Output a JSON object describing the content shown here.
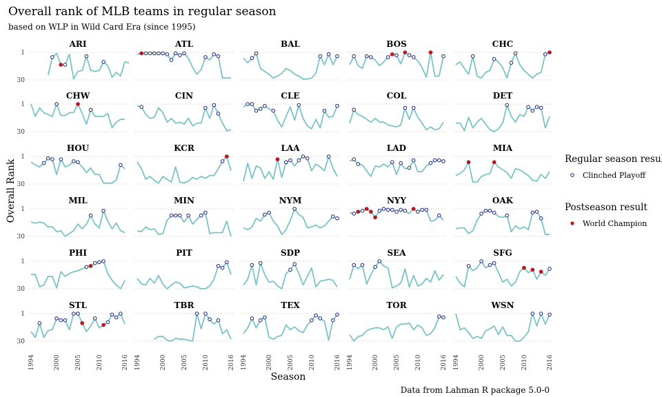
{
  "chart_data": {
    "type": "line",
    "title": "Overall rank of MLB teams in regular season",
    "subtitle": "based on WLP in Wild Card Era (since 1995)",
    "xlabel": "Season",
    "ylabel": "Overall Rank",
    "caption": "Data from Lahman R package 5.0-0",
    "x_ticks": [
      1994,
      2000,
      2005,
      2010,
      2016
    ],
    "y_ticks": [
      1,
      30
    ],
    "xlim": [
      1994,
      2016
    ],
    "ylim": [
      1,
      30
    ],
    "y_reversed": true,
    "grid": true,
    "legend_position": "right",
    "colors": {
      "line": "#79c3c8",
      "playoff_stroke": "#1a237e",
      "champion": "#cc1111",
      "grid": "#d0d0d0"
    },
    "legend": {
      "regular_title": "Regular season result",
      "regular_label": "Clinched Playoff",
      "post_title": "Postseason result",
      "post_label": "World Champion"
    },
    "panels": [
      {
        "name": "ARI",
        "start_year": 1998,
        "ranks": [
          25,
          6,
          2,
          14,
          14,
          3,
          29,
          21,
          20,
          5,
          20,
          21,
          20,
          11,
          15,
          27,
          22,
          26,
          11,
          12
        ],
        "playoffs": [
          1999,
          2001,
          2002,
          2007,
          2011
        ],
        "champions": [
          2001
        ]
      },
      {
        "name": "ATL",
        "start_year": 1994,
        "ranks": [
          3,
          2,
          2,
          2,
          2,
          2,
          2,
          3,
          9,
          2,
          4,
          2,
          7,
          17,
          24,
          19,
          6,
          9,
          3,
          5,
          28,
          28,
          28
        ],
        "playoffs": [
          1995,
          1996,
          1997,
          1998,
          1999,
          2000,
          2001,
          2002,
          2003,
          2004,
          2005,
          2010,
          2012,
          2013
        ],
        "champions": [
          1995
        ]
      },
      {
        "name": "BAL",
        "start_year": 1994,
        "ranks": [
          7,
          12,
          7,
          2,
          18,
          21,
          24,
          28,
          26,
          23,
          18,
          20,
          24,
          26,
          29,
          29,
          28,
          23,
          5,
          14,
          3,
          14,
          5
        ],
        "playoffs": [
          1996,
          1997,
          2012,
          2014,
          2016
        ],
        "champions": []
      },
      {
        "name": "BOS",
        "start_year": 1994,
        "ranks": [
          14,
          5,
          15,
          18,
          5,
          6,
          9,
          15,
          11,
          6,
          3,
          4,
          13,
          1,
          4,
          6,
          10,
          17,
          27,
          1,
          26,
          26,
          5
        ],
        "playoffs": [
          1995,
          1998,
          1999,
          2003,
          2004,
          2005,
          2007,
          2008,
          2009,
          2013,
          2016
        ],
        "champions": [
          2004,
          2007,
          2013
        ]
      },
      {
        "name": "CHC",
        "start_year": 1994,
        "ranks": [
          14,
          11,
          18,
          24,
          5,
          26,
          28,
          22,
          20,
          8,
          11,
          17,
          28,
          12,
          2,
          14,
          20,
          24,
          28,
          24,
          22,
          3,
          1
        ],
        "playoffs": [
          1998,
          2003,
          2007,
          2008,
          2015,
          2016
        ],
        "champions": [
          2016
        ]
      },
      {
        "name": "CHW",
        "start_year": 1994,
        "ranks": [
          1,
          14,
          5,
          10,
          12,
          14,
          1,
          13,
          13,
          10,
          10,
          1,
          11,
          22,
          7,
          14,
          14,
          14,
          11,
          26,
          20,
          17,
          17
        ],
        "playoffs": [
          2000,
          2005,
          2008
        ],
        "champions": [
          2005
        ]
      },
      {
        "name": "CIN",
        "start_year": 1994,
        "ranks": [
          3,
          4,
          12,
          16,
          15,
          5,
          10,
          20,
          16,
          21,
          20,
          22,
          16,
          24,
          21,
          21,
          5,
          16,
          2,
          11,
          21,
          29,
          28
        ],
        "playoffs": [
          1995,
          2010,
          2012,
          2013
        ],
        "champions": []
      },
      {
        "name": "CLE",
        "start_year": 1994,
        "ranks": [
          4,
          1,
          1,
          8,
          6,
          3,
          6,
          8,
          18,
          25,
          14,
          4,
          18,
          2,
          16,
          24,
          27,
          17,
          26,
          8,
          15,
          14,
          3
        ],
        "playoffs": [
          1995,
          1996,
          1997,
          1998,
          1999,
          2001,
          2007,
          2013,
          2016
        ],
        "champions": []
      },
      {
        "name": "COL",
        "start_year": 1994,
        "ranks": [
          21,
          7,
          12,
          14,
          17,
          20,
          16,
          20,
          20,
          23,
          24,
          25,
          23,
          5,
          17,
          5,
          15,
          21,
          28,
          25,
          28,
          27,
          20
        ],
        "playoffs": [
          1995,
          2007,
          2009
        ],
        "champions": []
      },
      {
        "name": "DET",
        "start_year": 1994,
        "ranks": [
          21,
          21,
          29,
          15,
          26,
          20,
          16,
          22,
          28,
          30,
          27,
          21,
          2,
          14,
          20,
          12,
          14,
          4,
          8,
          4,
          5,
          26,
          14
        ],
        "playoffs": [
          2006,
          2011,
          2012,
          2013,
          2014
        ],
        "champions": []
      },
      {
        "name": "HOU",
        "start_year": 1994,
        "ranks": [
          7,
          10,
          12,
          8,
          3,
          4,
          20,
          4,
          12,
          10,
          6,
          7,
          12,
          18,
          13,
          20,
          20,
          29,
          29,
          29,
          26,
          10,
          14
        ],
        "playoffs": [
          1997,
          1998,
          1999,
          2001,
          2004,
          2005,
          2015
        ],
        "champions": []
      },
      {
        "name": "KCR",
        "start_year": 1994,
        "ranks": [
          7,
          14,
          25,
          22,
          26,
          29,
          22,
          25,
          28,
          12,
          28,
          29,
          27,
          23,
          25,
          22,
          24,
          21,
          21,
          14,
          6,
          1,
          16
        ],
        "playoffs": [
          2014,
          2015
        ],
        "champions": [
          2015
        ]
      },
      {
        "name": "LAA",
        "start_year": 1994,
        "ranks": [
          27,
          8,
          24,
          11,
          13,
          24,
          17,
          25,
          4,
          23,
          7,
          5,
          11,
          5,
          1,
          3,
          16,
          9,
          12,
          16,
          1,
          13,
          22
        ],
        "playoffs": [
          2002,
          2004,
          2005,
          2007,
          2008,
          2009,
          2014
        ],
        "champions": [
          2002
        ]
      },
      {
        "name": "LAD",
        "start_year": 1994,
        "ranks": [
          6,
          4,
          9,
          10,
          16,
          22,
          11,
          12,
          9,
          12,
          7,
          20,
          8,
          14,
          13,
          5,
          17,
          17,
          11,
          8,
          5,
          5,
          6
        ],
        "playoffs": [
          1995,
          1996,
          2004,
          2006,
          2008,
          2009,
          2013,
          2014,
          2015,
          2016
        ],
        "champions": []
      },
      {
        "name": "MIA",
        "start_year": 1994,
        "ranks": [
          21,
          19,
          15,
          7,
          28,
          28,
          22,
          20,
          19,
          7,
          12,
          15,
          18,
          24,
          14,
          15,
          18,
          21,
          26,
          27,
          20,
          24,
          17
        ],
        "playoffs": [
          1997,
          2003
        ],
        "champions": [
          1997,
          2003
        ]
      },
      {
        "name": "MIL",
        "start_year": 1994,
        "ranks": [
          15,
          16,
          15,
          16,
          20,
          20,
          25,
          24,
          30,
          27,
          24,
          17,
          22,
          17,
          8,
          17,
          21,
          3,
          14,
          22,
          16,
          24,
          26
        ],
        "playoffs": [
          2008,
          2011
        ],
        "champions": []
      },
      {
        "name": "MIN",
        "start_year": 1994,
        "ranks": [
          24,
          25,
          20,
          23,
          22,
          28,
          27,
          13,
          8,
          8,
          8,
          15,
          8,
          17,
          12,
          8,
          5,
          27,
          26,
          26,
          26,
          14,
          30
        ],
        "playoffs": [
          2002,
          2003,
          2004,
          2006,
          2009,
          2010
        ],
        "champions": []
      },
      {
        "name": "NYM",
        "start_year": 1994,
        "ranks": [
          21,
          23,
          20,
          11,
          14,
          7,
          5,
          14,
          19,
          28,
          23,
          13,
          1,
          7,
          10,
          21,
          20,
          18,
          21,
          19,
          14,
          9,
          11
        ],
        "playoffs": [
          1999,
          2000,
          2006,
          2015,
          2016
        ],
        "champions": []
      },
      {
        "name": "NYY",
        "start_year": 1994,
        "ranks": [
          5,
          6,
          4,
          3,
          1,
          4,
          10,
          3,
          1,
          2,
          2,
          4,
          2,
          3,
          6,
          1,
          4,
          2,
          2,
          14,
          13,
          8,
          13
        ],
        "playoffs": [
          1995,
          1996,
          1997,
          1998,
          1999,
          2000,
          2001,
          2002,
          2003,
          2004,
          2005,
          2006,
          2007,
          2009,
          2010,
          2011,
          2012,
          2015
        ],
        "champions": [
          1996,
          1998,
          1999,
          2000,
          2009
        ]
      },
      {
        "name": "OAK",
        "start_year": 1994,
        "ranks": [
          22,
          21,
          21,
          27,
          24,
          13,
          6,
          3,
          3,
          5,
          9,
          10,
          8,
          25,
          19,
          22,
          20,
          23,
          5,
          4,
          11,
          28,
          28
        ],
        "playoffs": [
          2000,
          2001,
          2002,
          2003,
          2006,
          2012,
          2013,
          2014
        ],
        "champions": []
      },
      {
        "name": "PHI",
        "start_year": 1994,
        "ranks": [
          15,
          15,
          28,
          26,
          17,
          17,
          29,
          12,
          17,
          14,
          12,
          11,
          9,
          7,
          6,
          3,
          2,
          1,
          14,
          21,
          26,
          30,
          21
        ],
        "playoffs": [
          2007,
          2008,
          2009,
          2010,
          2011
        ],
        "champions": [
          2008
        ]
      },
      {
        "name": "PIT",
        "start_year": 1994,
        "ranks": [
          19,
          25,
          26,
          19,
          24,
          16,
          25,
          30,
          26,
          23,
          24,
          29,
          28,
          27,
          28,
          30,
          30,
          27,
          20,
          6,
          8,
          2,
          15
        ],
        "playoffs": [
          2013,
          2014,
          2015
        ],
        "champions": []
      },
      {
        "name": "SDP",
        "start_year": 1994,
        "ranks": [
          26,
          20,
          5,
          26,
          3,
          15,
          23,
          22,
          27,
          30,
          14,
          10,
          4,
          14,
          26,
          17,
          8,
          28,
          22,
          21,
          20,
          21,
          28
        ],
        "playoffs": [
          1996,
          1998,
          2005,
          2006
        ],
        "champions": []
      },
      {
        "name": "SEA",
        "start_year": 1994,
        "ranks": [
          20,
          5,
          9,
          5,
          25,
          15,
          7,
          1,
          6,
          8,
          29,
          27,
          24,
          9,
          28,
          16,
          27,
          25,
          19,
          23,
          11,
          21,
          15
        ],
        "playoffs": [
          1995,
          1997,
          2000,
          2001
        ],
        "champions": []
      },
      {
        "name": "SFG",
        "start_year": 1994,
        "ranks": [
          17,
          24,
          28,
          6,
          11,
          8,
          1,
          8,
          5,
          3,
          13,
          23,
          20,
          27,
          23,
          12,
          8,
          13,
          10,
          20,
          12,
          16,
          9
        ],
        "playoffs": [
          1997,
          2000,
          2002,
          2003,
          2010,
          2012,
          2014,
          2016
        ],
        "champions": [
          2010,
          2012,
          2014
        ]
      },
      {
        "name": "STL",
        "start_year": 1994,
        "ranks": [
          20,
          26,
          11,
          26,
          19,
          18,
          6,
          8,
          8,
          18,
          1,
          1,
          11,
          20,
          14,
          6,
          16,
          13,
          10,
          2,
          5,
          1,
          12
        ],
        "playoffs": [
          1996,
          2000,
          2001,
          2002,
          2004,
          2005,
          2006,
          2009,
          2011,
          2012,
          2013,
          2014,
          2015
        ],
        "champions": [
          2006,
          2011
        ]
      },
      {
        "name": "TBR",
        "start_year": 1998,
        "ranks": [
          28,
          25,
          25,
          29,
          30,
          27,
          28,
          28,
          29,
          30,
          1,
          17,
          1,
          7,
          12,
          8,
          22,
          18,
          28
        ],
        "playoffs": [
          2008,
          2010,
          2011,
          2013
        ],
        "champions": []
      },
      {
        "name": "TEX",
        "start_year": 1994,
        "ranks": [
          22,
          16,
          6,
          16,
          8,
          5,
          26,
          28,
          25,
          24,
          13,
          18,
          15,
          19,
          21,
          13,
          8,
          3,
          6,
          9,
          29,
          8,
          2
        ],
        "playoffs": [
          1996,
          1998,
          1999,
          2010,
          2011,
          2012,
          2015,
          2016
        ],
        "champions": []
      },
      {
        "name": "TOR",
        "start_year": 1994,
        "ranks": [
          23,
          30,
          25,
          24,
          19,
          17,
          16,
          16,
          18,
          15,
          27,
          15,
          12,
          12,
          11,
          18,
          13,
          16,
          24,
          22,
          16,
          4,
          5
        ],
        "playoffs": [
          2015,
          2016
        ],
        "champions": []
      },
      {
        "name": "WSN",
        "start_year": 1994,
        "ranks": [
          1,
          18,
          16,
          21,
          27,
          25,
          27,
          19,
          17,
          14,
          23,
          15,
          24,
          24,
          30,
          30,
          26,
          20,
          1,
          14,
          1,
          12,
          2
        ],
        "playoffs": [
          2012,
          2014,
          2016
        ],
        "champions": []
      }
    ]
  }
}
